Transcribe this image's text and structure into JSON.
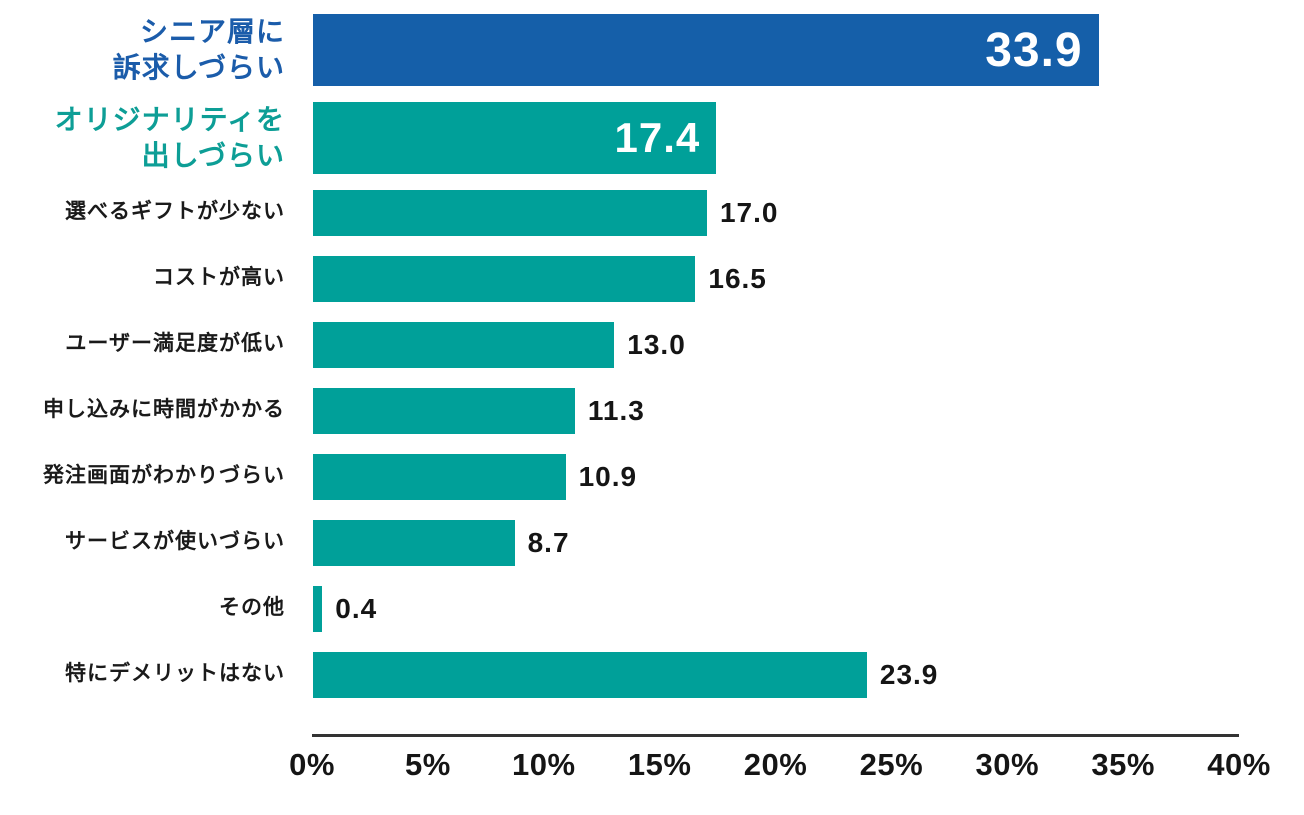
{
  "chart_data": {
    "type": "bar",
    "orientation": "horizontal",
    "title": "",
    "xlabel": "",
    "ylabel": "",
    "unit": "%",
    "xlim": [
      0,
      40
    ],
    "x_ticks": [
      "0%",
      "5%",
      "10%",
      "15%",
      "20%",
      "25%",
      "30%",
      "35%",
      "40%"
    ],
    "grid": false,
    "legend": "none",
    "categories": [
      "シニア層に訴求しづらい",
      "オリジナリティを出しづらい",
      "選べるギフトが少ない",
      "コストが高い",
      "ユーザー満足度が低い",
      "申し込みに時間がかかる",
      "発注画面がわかりづらい",
      "サービスが使いづらい",
      "その他",
      "特にデメリットはない"
    ],
    "values": [
      33.9,
      17.4,
      17.0,
      16.5,
      13.0,
      11.3,
      10.9,
      8.7,
      0.4,
      23.9
    ]
  },
  "colors": {
    "primary_bar": "#155fa9",
    "secondary_bar": "#00a099",
    "primary_label": "#1b5caa",
    "secondary_label": "#0d9e96",
    "text": "#1a1a1a",
    "value_inside": "#ffffff",
    "axis_line": "#333333"
  },
  "rows": [
    {
      "label": "シニア層に\n訴求しづらい",
      "value": 33.9,
      "value_label": "33.9",
      "bar_color": "#155fa9",
      "label_color": "#1b5caa",
      "value_position": "inside",
      "style": "hero primary"
    },
    {
      "label": "オリジナリティを\n出しづらい",
      "value": 17.4,
      "value_label": "17.4",
      "bar_color": "#00a099",
      "label_color": "#0d9e96",
      "value_position": "inside",
      "style": "hero secondary"
    },
    {
      "label": "選べるギフトが少ない",
      "value": 17.0,
      "value_label": "17.0",
      "bar_color": "#00a099",
      "label_color": "#1a1a1a",
      "value_position": "outside",
      "style": "normal"
    },
    {
      "label": "コストが高い",
      "value": 16.5,
      "value_label": "16.5",
      "bar_color": "#00a099",
      "label_color": "#1a1a1a",
      "value_position": "outside",
      "style": "normal"
    },
    {
      "label": "ユーザー満足度が低い",
      "value": 13.0,
      "value_label": "13.0",
      "bar_color": "#00a099",
      "label_color": "#1a1a1a",
      "value_position": "outside",
      "style": "normal"
    },
    {
      "label": "申し込みに時間がかかる",
      "value": 11.3,
      "value_label": "11.3",
      "bar_color": "#00a099",
      "label_color": "#1a1a1a",
      "value_position": "outside",
      "style": "normal"
    },
    {
      "label": "発注画面がわかりづらい",
      "value": 10.9,
      "value_label": "10.9",
      "bar_color": "#00a099",
      "label_color": "#1a1a1a",
      "value_position": "outside",
      "style": "normal"
    },
    {
      "label": "サービスが使いづらい",
      "value": 8.7,
      "value_label": "8.7",
      "bar_color": "#00a099",
      "label_color": "#1a1a1a",
      "value_position": "outside",
      "style": "normal"
    },
    {
      "label": "その他",
      "value": 0.4,
      "value_label": "0.4",
      "bar_color": "#00a099",
      "label_color": "#1a1a1a",
      "value_position": "outside",
      "style": "normal"
    },
    {
      "label": "特にデメリットはない",
      "value": 23.9,
      "value_label": "23.9",
      "bar_color": "#00a099",
      "label_color": "#1a1a1a",
      "value_position": "outside",
      "style": "normal"
    }
  ],
  "axis": {
    "ticks": [
      "0%",
      "5%",
      "10%",
      "15%",
      "20%",
      "25%",
      "30%",
      "35%",
      "40%"
    ],
    "max": 40
  }
}
